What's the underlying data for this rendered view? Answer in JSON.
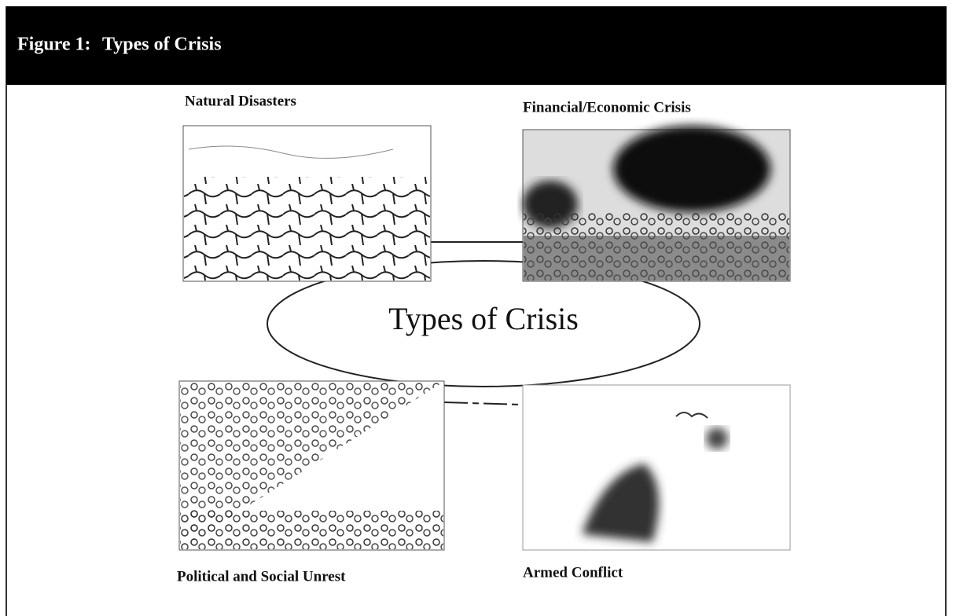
{
  "header": {
    "label": "Figure 1:",
    "title": "Types of Crisis"
  },
  "center": {
    "label": "Types of Crisis"
  },
  "nodes": [
    {
      "label": "Natural Disasters"
    },
    {
      "label": "Financial/Economic Crisis"
    },
    {
      "label": "Political and Social Unrest"
    },
    {
      "label": "Armed Conflict"
    }
  ]
}
